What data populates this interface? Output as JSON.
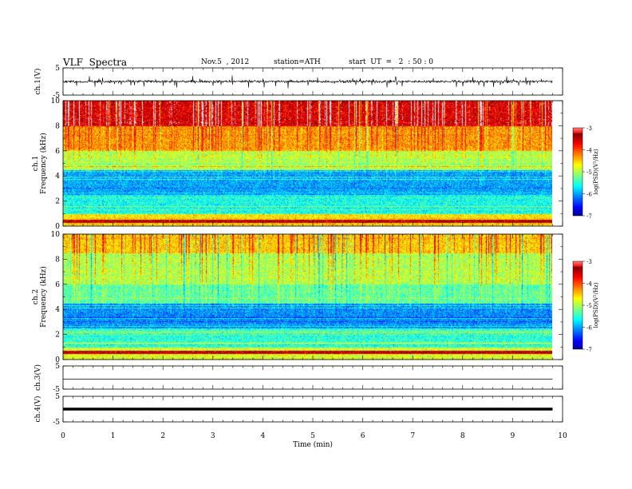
{
  "header": {
    "title": "VLF  Spectra",
    "date": "Nov.5  , 2012",
    "station": "station=ATH",
    "start": "start  UT  =   2  : 50 : 0"
  },
  "chart_data": [
    {
      "type": "line",
      "panel": "ch1-waveform",
      "ylabel": "ch.1(V)",
      "ylim": [
        -5,
        5
      ],
      "yticks": [
        "5",
        "-5"
      ],
      "xlim": [
        0,
        10
      ],
      "trace": "dense noisy waveform, roughly -1.2 to 1.2 V with frequent spikes to about ±2.5 V",
      "trace_color": "#000000",
      "data_end_min": 9.8
    },
    {
      "type": "heatmap",
      "panel": "ch1-spectrogram",
      "ylabel": "ch.1\nFrequency  (kHz)",
      "ylim": [
        0,
        10
      ],
      "yticks": [
        "0",
        "2",
        "4",
        "6",
        "8",
        "10"
      ],
      "xlim": [
        0,
        10
      ],
      "data_end_min": 9.8,
      "colorbar": {
        "label": "log(PSD)(V²/Hz)",
        "range": [
          -7,
          -3
        ],
        "ticks": [
          "-3",
          "-4",
          "-5",
          "-6",
          "-7"
        ]
      },
      "bands": [
        {
          "from_khz": 8.0,
          "to_khz": 10.0,
          "log_psd": -3.5
        },
        {
          "from_khz": 6.0,
          "to_khz": 8.0,
          "log_psd": -4.3
        },
        {
          "from_khz": 4.5,
          "to_khz": 6.0,
          "log_psd": -5.0
        },
        {
          "from_khz": 2.5,
          "to_khz": 4.5,
          "log_psd": -6.0
        },
        {
          "from_khz": 1.0,
          "to_khz": 2.5,
          "log_psd": -5.6
        },
        {
          "from_khz": 0.0,
          "to_khz": 1.0,
          "log_psd": -4.6
        }
      ],
      "line_at_khz": 0.4
    },
    {
      "type": "heatmap",
      "panel": "ch2-spectrogram",
      "ylabel": "ch.2\nFrequency  (kHz)",
      "ylim": [
        0,
        10
      ],
      "yticks": [
        "0",
        "2",
        "4",
        "6",
        "8",
        "10"
      ],
      "xlim": [
        0,
        10
      ],
      "data_end_min": 9.8,
      "colorbar": {
        "label": "log(PSD)(V²/Hz)",
        "range": [
          -7,
          -3
        ],
        "ticks": [
          "-3",
          "-4",
          "-5",
          "-6",
          "-7"
        ]
      },
      "bands": [
        {
          "from_khz": 8.5,
          "to_khz": 10.0,
          "log_psd": -4.5
        },
        {
          "from_khz": 6.0,
          "to_khz": 8.5,
          "log_psd": -5.0
        },
        {
          "from_khz": 4.5,
          "to_khz": 6.0,
          "log_psd": -5.3
        },
        {
          "from_khz": 2.5,
          "to_khz": 4.5,
          "log_psd": -6.1
        },
        {
          "from_khz": 1.0,
          "to_khz": 2.5,
          "log_psd": -5.5
        },
        {
          "from_khz": 0.0,
          "to_khz": 1.0,
          "log_psd": -4.8
        }
      ],
      "line_at_khz": 0.6
    },
    {
      "type": "line",
      "panel": "ch3-waveform",
      "ylabel": "ch.3(V)",
      "ylim": [
        -5,
        5
      ],
      "yticks": [
        "5",
        "-5"
      ],
      "xlim": [
        0,
        10
      ],
      "trace": "flat line near 0 V",
      "trace_color": "#000000",
      "data_end_min": 9.8
    },
    {
      "type": "line",
      "panel": "ch4-waveform",
      "ylabel": "ch.4(V)",
      "ylim": [
        -5,
        5
      ],
      "yticks": [
        "5",
        "-5"
      ],
      "xlim": [
        0,
        10
      ],
      "xlabel": "Time  (min)",
      "xticks": [
        "0",
        "1",
        "2",
        "3",
        "4",
        "5",
        "6",
        "7",
        "8",
        "9",
        "10"
      ],
      "trace": "thick flat line near 0 V",
      "trace_color": "#000000",
      "data_end_min": 9.8
    }
  ]
}
